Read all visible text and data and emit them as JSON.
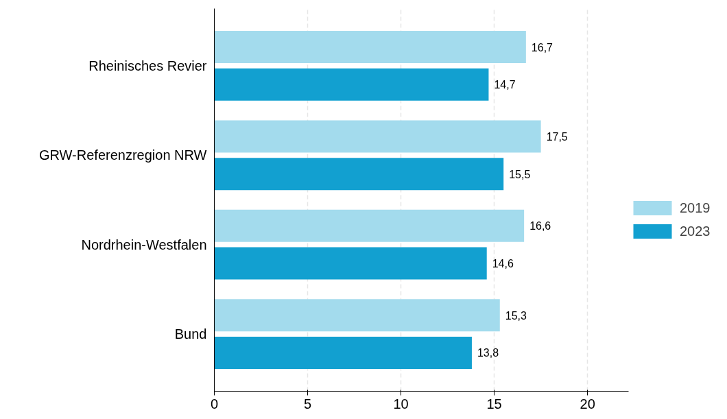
{
  "chart_data": {
    "type": "bar",
    "orientation": "horizontal",
    "categories": [
      "Rheinisches Revier",
      "GRW-Referenzregion NRW",
      "Nordrhein-Westfalen",
      "Bund"
    ],
    "series": [
      {
        "name": "2019",
        "color": "#a3dbed",
        "values": [
          16.7,
          17.5,
          16.6,
          15.3
        ],
        "value_labels": [
          "16,7",
          "17,5",
          "16,6",
          "15,3"
        ]
      },
      {
        "name": "2023",
        "color": "#12a0d0",
        "values": [
          14.7,
          15.5,
          14.6,
          13.8
        ],
        "value_labels": [
          "14,7",
          "15,5",
          "14,6",
          "13,8"
        ]
      }
    ],
    "xlim": [
      0,
      22.2
    ],
    "xticks": [
      0,
      5,
      10,
      15,
      20
    ],
    "grid": "x",
    "legend": "right"
  }
}
